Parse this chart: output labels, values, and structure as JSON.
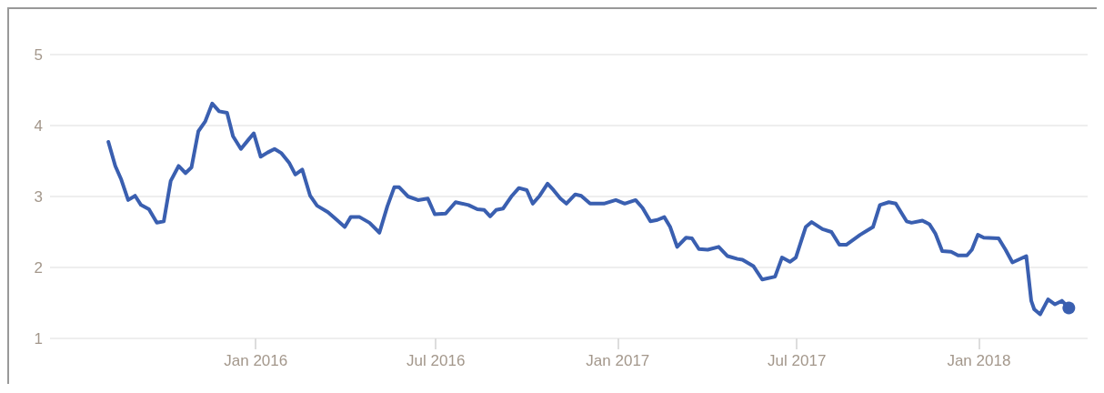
{
  "chart_data": {
    "type": "line",
    "x": [
      "2015-08-05",
      "2015-08-12",
      "2015-08-18",
      "2015-08-25",
      "2015-09-01",
      "2015-09-07",
      "2015-09-15",
      "2015-09-23",
      "2015-09-30",
      "2015-10-07",
      "2015-10-15",
      "2015-10-22",
      "2015-10-28",
      "2015-11-04",
      "2015-11-11",
      "2015-11-18",
      "2015-11-25",
      "2015-12-03",
      "2015-12-09",
      "2015-12-17",
      "2015-12-24",
      "2015-12-30",
      "2016-01-06",
      "2016-01-13",
      "2016-01-20",
      "2016-01-27",
      "2016-02-04",
      "2016-02-10",
      "2016-02-17",
      "2016-02-25",
      "2016-03-03",
      "2016-03-14",
      "2016-03-23",
      "2016-03-31",
      "2016-04-06",
      "2016-04-15",
      "2016-04-25",
      "2016-05-05",
      "2016-05-13",
      "2016-05-20",
      "2016-05-25",
      "2016-06-03",
      "2016-06-13",
      "2016-06-23",
      "2016-06-30",
      "2016-07-11",
      "2016-07-21",
      "2016-08-03",
      "2016-08-12",
      "2016-08-19",
      "2016-08-25",
      "2016-08-31",
      "2016-09-07",
      "2016-09-16",
      "2016-09-23",
      "2016-10-01",
      "2016-10-07",
      "2016-10-14",
      "2016-10-22",
      "2016-10-28",
      "2016-11-04",
      "2016-11-10",
      "2016-11-19",
      "2016-11-25",
      "2016-12-04",
      "2016-12-18",
      "2016-12-30",
      "2017-01-08",
      "2017-01-19",
      "2017-01-26",
      "2017-02-03",
      "2017-02-10",
      "2017-02-17",
      "2017-02-23",
      "2017-03-02",
      "2017-03-11",
      "2017-03-17",
      "2017-03-24",
      "2017-04-02",
      "2017-04-13",
      "2017-04-22",
      "2017-05-02",
      "2017-05-07",
      "2017-05-18",
      "2017-05-27",
      "2017-06-09",
      "2017-06-16",
      "2017-06-24",
      "2017-06-30",
      "2017-07-10",
      "2017-07-16",
      "2017-07-27",
      "2017-08-05",
      "2017-08-13",
      "2017-08-20",
      "2017-09-03",
      "2017-09-16",
      "2017-09-23",
      "2017-10-02",
      "2017-10-09",
      "2017-10-20",
      "2017-10-25",
      "2017-11-05",
      "2017-11-12",
      "2017-11-18",
      "2017-11-25",
      "2017-12-04",
      "2017-12-11",
      "2017-12-20",
      "2017-12-25",
      "2017-12-31",
      "2018-01-06",
      "2018-01-21",
      "2018-01-28",
      "2018-02-04",
      "2018-02-18",
      "2018-02-23",
      "2018-02-26",
      "2018-03-04",
      "2018-03-12",
      "2018-03-19",
      "2018-03-26",
      "2018-04-02"
    ],
    "series": [
      {
        "color": "#3a5fb0",
        "values": [
          3.77,
          3.43,
          3.24,
          2.95,
          3.01,
          2.88,
          2.82,
          2.63,
          2.65,
          3.22,
          3.43,
          3.33,
          3.41,
          3.92,
          4.06,
          4.31,
          4.2,
          4.18,
          3.85,
          3.67,
          3.79,
          3.89,
          3.56,
          3.62,
          3.67,
          3.61,
          3.47,
          3.31,
          3.38,
          3.01,
          2.87,
          2.78,
          2.67,
          2.57,
          2.71,
          2.71,
          2.63,
          2.49,
          2.86,
          3.13,
          3.13,
          3.0,
          2.95,
          2.97,
          2.75,
          2.76,
          2.92,
          2.88,
          2.82,
          2.81,
          2.72,
          2.81,
          2.83,
          3.01,
          3.12,
          3.09,
          2.9,
          3.01,
          3.18,
          3.09,
          2.97,
          2.9,
          3.03,
          3.01,
          2.9,
          2.9,
          2.95,
          2.9,
          2.95,
          2.84,
          2.65,
          2.67,
          2.71,
          2.57,
          2.29,
          2.42,
          2.41,
          2.26,
          2.25,
          2.29,
          2.16,
          2.12,
          2.11,
          2.02,
          1.83,
          1.87,
          2.14,
          2.08,
          2.14,
          2.57,
          2.64,
          2.54,
          2.5,
          2.32,
          2.32,
          2.46,
          2.57,
          2.88,
          2.92,
          2.9,
          2.65,
          2.63,
          2.66,
          2.61,
          2.48,
          2.23,
          2.22,
          2.17,
          2.17,
          2.25,
          2.46,
          2.42,
          2.41,
          2.25,
          2.07,
          2.16,
          1.53,
          1.41,
          1.34,
          1.55,
          1.48,
          1.53,
          1.43
        ]
      }
    ],
    "xlim": [
      "2015-06-07",
      "2018-04-21"
    ],
    "xticks": [
      {
        "value": "2016-01-01",
        "label": "Jan 2016"
      },
      {
        "value": "2016-07-01",
        "label": "Jul 2016"
      },
      {
        "value": "2017-01-01",
        "label": "Jan 2017"
      },
      {
        "value": "2017-07-01",
        "label": "Jul 2017"
      },
      {
        "value": "2018-01-01",
        "label": "Jan 2018"
      }
    ],
    "ylim": [
      1,
      5
    ],
    "yticks": [
      1,
      2,
      3,
      4,
      5
    ],
    "grid": "y",
    "marker": "none",
    "line_style": "solid"
  }
}
